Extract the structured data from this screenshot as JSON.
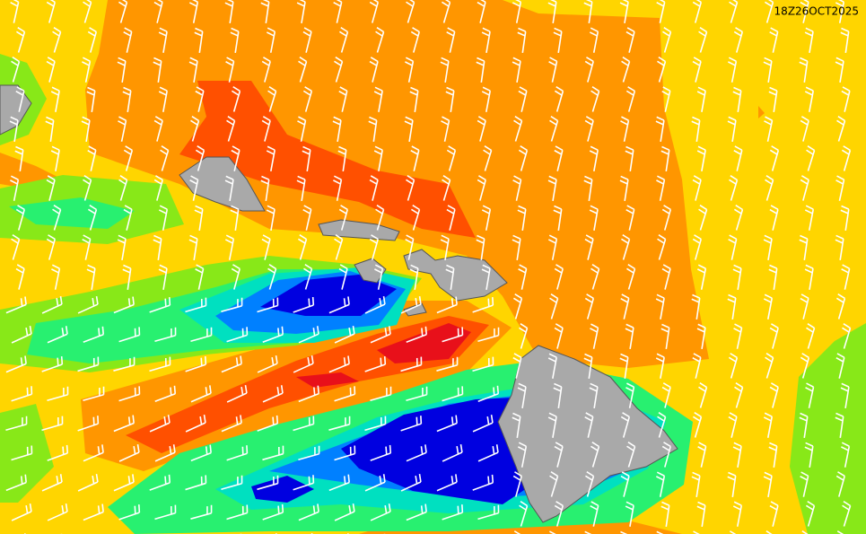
{
  "map": {
    "timestamp": "18Z26OCT2025"
  }
}
